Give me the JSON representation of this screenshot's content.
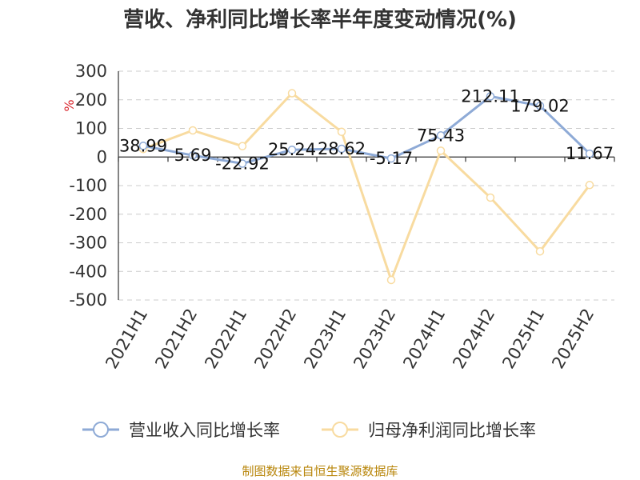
{
  "chart_data": {
    "type": "line",
    "title": "营收、净利同比增长率半年度变动情况(%)",
    "ylabel": "%",
    "categories": [
      "2021H1",
      "2021H2",
      "2022H1",
      "2022H2",
      "2023H1",
      "2023H2",
      "2024H1",
      "2024H2",
      "2025H1",
      "2025H2"
    ],
    "ylim": [
      -500,
      300
    ],
    "yticks": [
      300,
      200,
      100,
      0,
      -100,
      -200,
      -300,
      -400,
      -500
    ],
    "grid": true,
    "legend_position": "bottom",
    "series": [
      {
        "name": "营业收入同比增长率",
        "color": "#8eaad6",
        "values": [
          38.99,
          5.69,
          -22.92,
          25.24,
          28.62,
          -5.17,
          75.43,
          212.11,
          179.02,
          11.67
        ],
        "labels": [
          "38.99",
          "5.69",
          "-22.92",
          "25.24",
          "28.62",
          "-5.17",
          "75.43",
          "212.11",
          "179.02",
          "11.67"
        ]
      },
      {
        "name": "归母净利润同比增长率",
        "color": "#f8dba0",
        "values": [
          28,
          93,
          38,
          223,
          88,
          -430,
          22,
          -142,
          -330,
          -98
        ]
      }
    ]
  },
  "source": "制图数据来自恒生聚源数据库"
}
